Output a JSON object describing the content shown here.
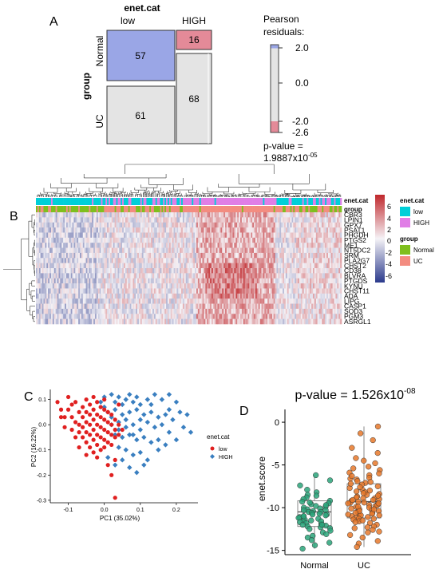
{
  "panels": {
    "a": "A",
    "b": "B",
    "c": "C",
    "d": "D"
  },
  "colors": {
    "low": "#00cfd8",
    "high": "#e07ee6",
    "normal": "#7fbf1e",
    "uc": "#f38c80",
    "mosaic_blue": "#9aa6e6",
    "mosaic_pink": "#e48a98",
    "mosaic_grey": "#e4e4e4",
    "pca_low": "#e02020",
    "pca_high": "#3a7fc0",
    "box_normal": "#2aa57a",
    "box_uc": "#e6782a",
    "heat_pos": "#c0282c",
    "heat_neg": "#2b3a8c"
  },
  "panel_a": {
    "title": "enet.cat",
    "col_labels": [
      "low",
      "HIGH"
    ],
    "row_title": "group",
    "row_labels": [
      "Normal",
      "UC"
    ],
    "counts": {
      "normal_low": "57",
      "normal_high": "16",
      "uc_low": "61",
      "uc_high": "68"
    },
    "legend": {
      "title_line1": "Pearson",
      "title_line2": "residuals:",
      "ticks": [
        "2.0",
        "0.0",
        "-2.0",
        "-2.6"
      ],
      "pvalue_line1": "p-value =",
      "pvalue_base": "1.9887x10",
      "pvalue_exp": "-05"
    }
  },
  "panel_b": {
    "ann_labels": [
      "enet.cat",
      "group"
    ],
    "genes": [
      "CBR3",
      "LPIN1",
      "GPX7",
      "PSAT1",
      "PHGDH",
      "PTGS2",
      "ME1",
      "NT5DC2",
      "SRM",
      "PLA2G7",
      "CHST2",
      "CD38",
      "BLVRA",
      "PTGDS",
      "KYNU",
      "CHST11",
      "ADA",
      "LIPG",
      "CASP1",
      "SOD3",
      "PGM3",
      "ASRGL1"
    ],
    "scale_ticks": [
      "6",
      "4",
      "2",
      "0",
      "-2",
      "-4",
      "-6"
    ],
    "legend": {
      "enet_title": "enet.cat",
      "enet_items": [
        "low",
        "HIGH"
      ],
      "group_title": "group",
      "group_items": [
        "Normal",
        "UC"
      ]
    }
  },
  "panel_c": {
    "legend_title": "enet.cat",
    "legend_items": [
      "low",
      "HIGH"
    ]
  },
  "panel_d": {
    "title_base": "p-value = 1.526x10",
    "title_exp": "-08"
  },
  "chart_data": [
    {
      "type": "scatter",
      "xlabel": "PC1 (35.02%)",
      "ylabel": "PC2 (16.22%)",
      "xlim": [
        -0.15,
        0.26
      ],
      "ylim": [
        -0.31,
        0.14
      ],
      "xticks": [
        "-0.1",
        "0.0",
        "0.1",
        "0.2"
      ],
      "xtick_values": [
        -0.1,
        0.0,
        0.1,
        0.2
      ],
      "yticks": [
        "0.1",
        "0.0",
        "-0.1",
        "-0.2",
        "-0.3"
      ],
      "ytick_values": [
        0.1,
        0.0,
        -0.1,
        -0.2,
        -0.3
      ],
      "series": [
        {
          "name": "low",
          "points": [
            [
              -0.1,
              0.11
            ],
            [
              -0.09,
              0.08
            ],
            [
              -0.12,
              0.03
            ],
            [
              -0.11,
              -0.01
            ],
            [
              -0.1,
              0.06
            ],
            [
              -0.09,
              0.03
            ],
            [
              -0.08,
              0.01
            ],
            [
              -0.08,
              0.09
            ],
            [
              -0.07,
              0.05
            ],
            [
              -0.07,
              0.0
            ],
            [
              -0.07,
              -0.03
            ],
            [
              -0.06,
              0.07
            ],
            [
              -0.06,
              0.03
            ],
            [
              -0.06,
              -0.01
            ],
            [
              -0.06,
              -0.05
            ],
            [
              -0.05,
              0.1
            ],
            [
              -0.05,
              0.05
            ],
            [
              -0.05,
              0.01
            ],
            [
              -0.05,
              -0.03
            ],
            [
              -0.05,
              -0.07
            ],
            [
              -0.04,
              0.08
            ],
            [
              -0.04,
              0.04
            ],
            [
              -0.04,
              0.0
            ],
            [
              -0.04,
              -0.04
            ],
            [
              -0.04,
              -0.09
            ],
            [
              -0.03,
              0.11
            ],
            [
              -0.03,
              0.06
            ],
            [
              -0.03,
              0.02
            ],
            [
              -0.03,
              -0.02
            ],
            [
              -0.03,
              -0.06
            ],
            [
              -0.03,
              -0.11
            ],
            [
              -0.02,
              0.09
            ],
            [
              -0.02,
              0.04
            ],
            [
              -0.02,
              0.0
            ],
            [
              -0.02,
              -0.04
            ],
            [
              -0.02,
              -0.08
            ],
            [
              -0.01,
              0.07
            ],
            [
              -0.01,
              0.03
            ],
            [
              -0.01,
              -0.01
            ],
            [
              -0.01,
              -0.05
            ],
            [
              -0.01,
              -0.1
            ],
            [
              0.0,
              0.06
            ],
            [
              0.0,
              0.02
            ],
            [
              0.0,
              -0.02
            ],
            [
              0.0,
              -0.06
            ],
            [
              0.0,
              -0.09
            ],
            [
              0.01,
              0.05
            ],
            [
              0.01,
              0.01
            ],
            [
              0.01,
              -0.03
            ],
            [
              0.01,
              -0.07
            ],
            [
              0.02,
              0.04
            ],
            [
              0.02,
              0.0
            ],
            [
              0.02,
              -0.04
            ],
            [
              0.02,
              -0.08
            ],
            [
              0.03,
              0.02
            ],
            [
              0.03,
              -0.02
            ],
            [
              0.03,
              -0.05
            ],
            [
              0.04,
              0.0
            ],
            [
              0.04,
              -0.04
            ],
            [
              0.05,
              -0.02
            ],
            [
              -0.13,
              0.09
            ],
            [
              -0.12,
              0.06
            ],
            [
              -0.11,
              0.03
            ],
            [
              -0.09,
              -0.02
            ],
            [
              -0.08,
              -0.05
            ],
            [
              -0.07,
              -0.09
            ],
            [
              0.03,
              -0.14
            ],
            [
              0.01,
              -0.16
            ],
            [
              0.02,
              -0.2
            ],
            [
              0.03,
              -0.29
            ],
            [
              -0.02,
              -0.13
            ],
            [
              0.04,
              0.08
            ],
            [
              0.0,
              0.1
            ],
            [
              -0.05,
              -0.12
            ]
          ]
        },
        {
          "name": "HIGH",
          "points": [
            [
              0.0,
              0.11
            ],
            [
              0.02,
              0.12
            ],
            [
              0.03,
              0.09
            ],
            [
              0.04,
              0.11
            ],
            [
              0.05,
              0.08
            ],
            [
              0.06,
              0.1
            ],
            [
              0.07,
              0.12
            ],
            [
              0.08,
              0.09
            ],
            [
              0.09,
              0.11
            ],
            [
              0.1,
              0.08
            ],
            [
              0.12,
              0.1
            ],
            [
              0.14,
              0.12
            ],
            [
              0.16,
              0.1
            ],
            [
              0.18,
              0.12
            ],
            [
              0.2,
              0.09
            ],
            [
              0.01,
              0.05
            ],
            [
              0.03,
              0.06
            ],
            [
              0.05,
              0.04
            ],
            [
              0.07,
              0.05
            ],
            [
              0.09,
              0.06
            ],
            [
              0.11,
              0.04
            ],
            [
              0.13,
              0.05
            ],
            [
              0.15,
              0.03
            ],
            [
              0.17,
              0.04
            ],
            [
              0.19,
              0.02
            ],
            [
              0.21,
              0.05
            ],
            [
              0.02,
              0.0
            ],
            [
              0.04,
              0.01
            ],
            [
              0.06,
              -0.01
            ],
            [
              0.08,
              0.0
            ],
            [
              0.1,
              -0.02
            ],
            [
              0.12,
              0.01
            ],
            [
              0.14,
              -0.01
            ],
            [
              0.16,
              0.0
            ],
            [
              0.18,
              -0.03
            ],
            [
              0.22,
              -0.01
            ],
            [
              0.24,
              -0.03
            ],
            [
              0.03,
              -0.04
            ],
            [
              0.05,
              -0.05
            ],
            [
              0.07,
              -0.04
            ],
            [
              0.09,
              -0.06
            ],
            [
              0.11,
              -0.05
            ],
            [
              0.13,
              -0.07
            ],
            [
              0.15,
              -0.06
            ],
            [
              0.17,
              -0.08
            ],
            [
              0.2,
              -0.06
            ],
            [
              0.04,
              -0.09
            ],
            [
              0.06,
              -0.1
            ],
            [
              0.08,
              -0.12
            ],
            [
              0.1,
              -0.11
            ],
            [
              0.12,
              -0.14
            ],
            [
              0.05,
              -0.14
            ],
            [
              0.07,
              -0.17
            ],
            [
              0.09,
              -0.19
            ],
            [
              0.11,
              -0.16
            ],
            [
              0.03,
              -0.16
            ],
            [
              0.01,
              -0.13
            ],
            [
              0.0,
              0.07
            ],
            [
              -0.01,
              0.09
            ],
            [
              0.02,
              0.03
            ],
            [
              0.04,
              -0.02
            ],
            [
              0.06,
              0.02
            ],
            [
              0.08,
              -0.04
            ],
            [
              0.13,
              0.08
            ],
            [
              0.15,
              -0.1
            ],
            [
              0.18,
              0.06
            ],
            [
              0.23,
              0.04
            ],
            [
              0.1,
              0.02
            ]
          ]
        }
      ]
    },
    {
      "type": "box",
      "ylabel": "enet.score",
      "categories": [
        "Normal",
        "UC"
      ],
      "ylim": [
        -15.5,
        1.5
      ],
      "yticks": [
        "0",
        "-5",
        "-10",
        "-15"
      ],
      "ytick_values": [
        0,
        -5,
        -10,
        -15
      ],
      "boxes": [
        {
          "name": "Normal",
          "min": -14.8,
          "q1": -12.2,
          "median": -10.5,
          "q3": -9.2,
          "max": -6.2
        },
        {
          "name": "UC",
          "min": -14.6,
          "q1": -11.2,
          "median": -9.3,
          "q3": -7.2,
          "max": -0.5
        }
      ],
      "points": {
        "Normal": [
          -6.2,
          -6.8,
          -7.4,
          -7.9,
          -8.2,
          -8.5,
          -8.8,
          -9.0,
          -9.2,
          -9.3,
          -9.5,
          -9.6,
          -9.8,
          -9.9,
          -10.0,
          -10.1,
          -10.2,
          -10.3,
          -10.4,
          -10.5,
          -10.5,
          -10.6,
          -10.7,
          -10.8,
          -10.9,
          -11.0,
          -11.1,
          -11.2,
          -11.3,
          -11.4,
          -11.5,
          -11.6,
          -11.7,
          -11.8,
          -11.9,
          -12.0,
          -12.1,
          -12.2,
          -12.3,
          -12.4,
          -12.5,
          -12.7,
          -12.9,
          -13.1,
          -13.3,
          -13.5,
          -13.8,
          -14.1,
          -14.4,
          -14.8,
          -9.7,
          -10.3,
          -11.0,
          -11.6,
          -12.0,
          -8.6,
          -9.4,
          -10.8
        ],
        "UC": [
          -0.5,
          -1.3,
          -2.1,
          -3.0,
          -3.6,
          -4.2,
          -4.8,
          -5.2,
          -5.6,
          -5.9,
          -6.2,
          -6.5,
          -6.7,
          -6.9,
          -7.1,
          -7.3,
          -7.5,
          -7.7,
          -7.9,
          -8.1,
          -8.2,
          -8.4,
          -8.5,
          -8.7,
          -8.8,
          -8.9,
          -9.0,
          -9.1,
          -9.2,
          -9.3,
          -9.4,
          -9.5,
          -9.6,
          -9.7,
          -9.8,
          -9.9,
          -10.0,
          -10.1,
          -10.2,
          -10.3,
          -10.4,
          -10.5,
          -10.6,
          -10.7,
          -10.8,
          -10.9,
          -11.0,
          -11.1,
          -11.2,
          -11.3,
          -11.4,
          -11.6,
          -11.8,
          -12.0,
          -12.2,
          -12.4,
          -12.6,
          -12.9,
          -13.2,
          -13.5,
          -13.9,
          -14.2,
          -14.6,
          -7.0,
          -7.6,
          -8.3,
          -8.9,
          -9.4,
          -9.9,
          -10.4,
          -10.9,
          -11.5,
          -6.0,
          -6.6,
          -8.0,
          -9.1,
          -9.7,
          -10.2,
          -10.8,
          -11.7,
          -12.3,
          -5.4,
          -7.2,
          -8.6,
          -9.5,
          -10.6,
          -11.3,
          -12.8,
          -4.5,
          -6.3
        ]
      }
    }
  ]
}
